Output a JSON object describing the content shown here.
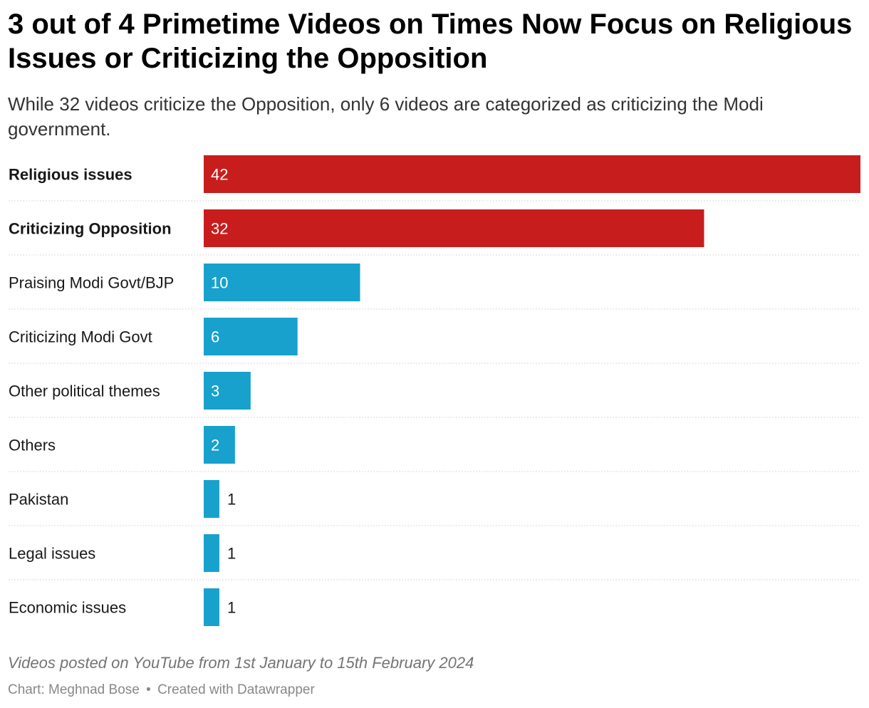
{
  "title": "3 out of 4 Primetime Videos on Times Now Focus on Religious Issues or Criticizing the Opposition",
  "subtitle": "While 32 videos criticize the Opposition, only 6 videos are categorized as criticizing the Modi government.",
  "notes": "Videos posted on YouTube from 1st January to 15th February 2024",
  "source": {
    "chart_label": "Chart: Meghnad Bose",
    "separator": "•",
    "created_with": "Created with Datawrapper"
  },
  "colors": {
    "highlight": "#c71e1d",
    "default": "#18a1cd",
    "divider": "#d9d9d9",
    "label_inside": "#ffffff",
    "label_outside": "#181818"
  },
  "chart_data": {
    "type": "bar",
    "orientation": "horizontal",
    "categories": [
      "Religious issues",
      "Criticizing Opposition",
      "Praising Modi Govt/BJP",
      "Criticizing Modi Govt",
      "Other political themes",
      "Others",
      "Pakistan",
      "Legal issues",
      "Economic issues"
    ],
    "values": [
      42,
      32,
      10,
      6,
      3,
      2,
      1,
      1,
      1
    ],
    "highlighted": [
      true,
      true,
      false,
      false,
      false,
      false,
      false,
      false,
      false
    ],
    "xlim": [
      0,
      42
    ],
    "grid": false,
    "legend": "none"
  }
}
